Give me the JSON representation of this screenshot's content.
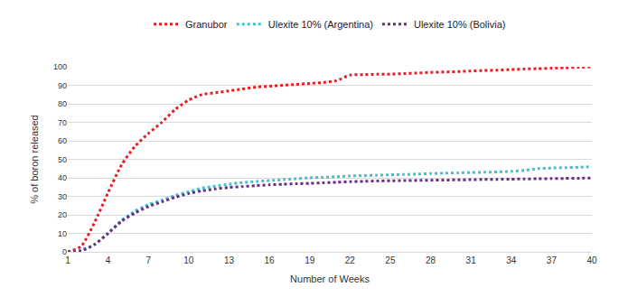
{
  "chart_data": {
    "type": "line",
    "x_label": "Number of Weeks",
    "y_label": "% of boron released",
    "x": [
      1,
      2,
      3,
      4,
      5,
      6,
      7,
      8,
      9,
      10,
      11,
      12,
      13,
      14,
      15,
      16,
      17,
      18,
      19,
      20,
      21,
      22,
      23,
      24,
      25,
      26,
      27,
      28,
      29,
      30,
      31,
      32,
      33,
      34,
      35,
      36,
      37,
      38,
      39,
      40
    ],
    "xlim": [
      1,
      40
    ],
    "xticks": [
      1,
      4,
      7,
      10,
      13,
      16,
      19,
      22,
      25,
      28,
      31,
      34,
      37,
      40
    ],
    "ylim": [
      0,
      100
    ],
    "yticks": [
      0,
      10,
      20,
      30,
      40,
      50,
      60,
      70,
      80,
      90,
      100
    ],
    "grid": true,
    "legend": "top",
    "line_style": "dot",
    "series": [
      {
        "name": "Granubor",
        "color": "#e31e24",
        "values": [
          0,
          3,
          16,
          32,
          47,
          57,
          64,
          70,
          77,
          82,
          85,
          86,
          87,
          88,
          89,
          89.5,
          90,
          90.5,
          91,
          91.5,
          92.5,
          95.5,
          95.7,
          96,
          96,
          96.3,
          96.6,
          97,
          97.2,
          97.4,
          97.7,
          98,
          98.2,
          98.5,
          98.8,
          99,
          99.3,
          99.5,
          99.7,
          100
        ]
      },
      {
        "name": "Ulexite 10% (Argentina)",
        "color": "#3ec1d3",
        "values": [
          0,
          1,
          4,
          10,
          17,
          22,
          25.5,
          28,
          30.5,
          32.5,
          34.5,
          35.5,
          36.5,
          37.5,
          38,
          38.5,
          39,
          39.5,
          40,
          40.3,
          40.6,
          41,
          41.2,
          41.4,
          41.6,
          41.8,
          42,
          42.3,
          42.5,
          42.7,
          42.9,
          43,
          43.2,
          43.5,
          44,
          45,
          45.3,
          45.5,
          45.7,
          46
        ]
      },
      {
        "name": "Ulexite 10% (Bolivia)",
        "color": "#6b2a8c",
        "values": [
          0,
          0.5,
          4,
          10,
          16.5,
          21,
          24.5,
          27,
          29.5,
          31.5,
          33,
          34,
          34.8,
          35.3,
          35.8,
          36.2,
          36.5,
          36.8,
          37,
          37.3,
          37.6,
          37.9,
          38.1,
          38.3,
          38.4,
          38.5,
          38.6,
          38.7,
          38.8,
          38.9,
          39,
          39.1,
          39.2,
          39.3,
          39.4,
          39.5,
          39.6,
          39.7,
          39.8,
          39.9
        ]
      }
    ]
  }
}
